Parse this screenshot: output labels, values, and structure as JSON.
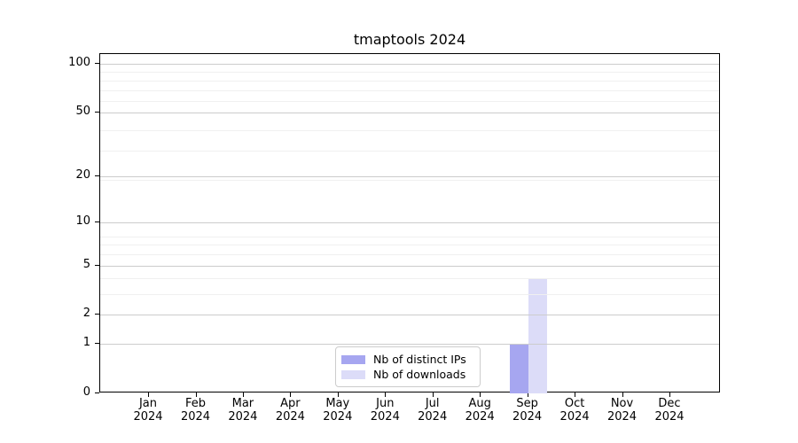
{
  "chart_data": {
    "type": "bar",
    "title": "tmaptools 2024",
    "x_year": "2024",
    "categories": [
      "Jan",
      "Feb",
      "Mar",
      "Apr",
      "May",
      "Jun",
      "Jul",
      "Aug",
      "Sep",
      "Oct",
      "Nov",
      "Dec"
    ],
    "series": [
      {
        "name": "Nb of distinct IPs",
        "color": "#a6a6f0",
        "values": [
          0,
          0,
          0,
          0,
          0,
          0,
          0,
          0,
          1,
          0,
          0,
          0
        ]
      },
      {
        "name": "Nb of downloads",
        "color": "#dcdcf8",
        "values": [
          0,
          0,
          0,
          0,
          0,
          0,
          0,
          0,
          4,
          0,
          0,
          0
        ]
      }
    ],
    "y_ticks": [
      0,
      1,
      2,
      5,
      10,
      20,
      50,
      100
    ],
    "y_scale": "log10(1+v)",
    "ylim": [
      0,
      115
    ],
    "grid": true,
    "legend_position": "lower center (inside plot)",
    "colors": {
      "grid_major": "#cccccc",
      "grid_minor": "#f0f0f0",
      "axis": "#000000"
    }
  }
}
